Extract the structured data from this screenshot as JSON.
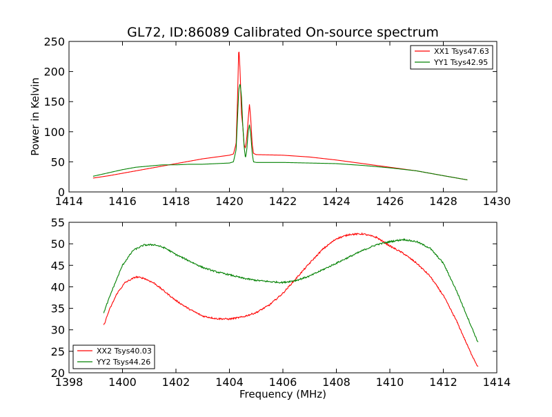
{
  "chart_data": [
    {
      "type": "line",
      "title": "GL72, ID:86089 Calibrated On-source spectrum",
      "xlabel": "",
      "ylabel": "Power in Kelvin",
      "xlim": [
        1414,
        1430
      ],
      "ylim": [
        0,
        250
      ],
      "xticks": [
        "1414",
        "1416",
        "1418",
        "1420",
        "1422",
        "1424",
        "1426",
        "1428",
        "1430"
      ],
      "yticks": [
        "0",
        "50",
        "100",
        "150",
        "200",
        "250"
      ],
      "legend_position": "top-right",
      "series": [
        {
          "name": "XX1 Tsys47.63",
          "color": "#ff0000",
          "points": [
            [
              1414.9,
              23
            ],
            [
              1415.5,
              27
            ],
            [
              1416,
              31
            ],
            [
              1416.5,
              35
            ],
            [
              1417,
              39
            ],
            [
              1417.5,
              43
            ],
            [
              1418,
              47
            ],
            [
              1418.5,
              51
            ],
            [
              1419,
              55
            ],
            [
              1419.5,
              58
            ],
            [
              1420,
              61
            ],
            [
              1420.15,
              63
            ],
            [
              1420.25,
              80
            ],
            [
              1420.3,
              150
            ],
            [
              1420.35,
              241
            ],
            [
              1420.4,
              200
            ],
            [
              1420.45,
              130
            ],
            [
              1420.5,
              110
            ],
            [
              1420.55,
              78
            ],
            [
              1420.6,
              73
            ],
            [
              1420.65,
              90
            ],
            [
              1420.7,
              120
            ],
            [
              1420.75,
              146
            ],
            [
              1420.8,
              120
            ],
            [
              1420.85,
              80
            ],
            [
              1420.9,
              64
            ],
            [
              1421,
              62
            ],
            [
              1422,
              61
            ],
            [
              1423,
              58
            ],
            [
              1424,
              53
            ],
            [
              1425,
              47
            ],
            [
              1426,
              41
            ],
            [
              1427,
              35
            ],
            [
              1428,
              27
            ],
            [
              1428.9,
              20
            ]
          ]
        },
        {
          "name": "YY1 Tsys42.95",
          "color": "#008000",
          "points": [
            [
              1414.9,
              26
            ],
            [
              1415.5,
              32
            ],
            [
              1416,
              37
            ],
            [
              1416.5,
              41
            ],
            [
              1417,
              43
            ],
            [
              1417.5,
              45
            ],
            [
              1418,
              45
            ],
            [
              1418.5,
              46
            ],
            [
              1419,
              46
            ],
            [
              1419.5,
              47
            ],
            [
              1420,
              48
            ],
            [
              1420.15,
              50
            ],
            [
              1420.25,
              70
            ],
            [
              1420.3,
              120
            ],
            [
              1420.35,
              170
            ],
            [
              1420.4,
              180
            ],
            [
              1420.45,
              160
            ],
            [
              1420.5,
              110
            ],
            [
              1420.55,
              75
            ],
            [
              1420.6,
              56
            ],
            [
              1420.65,
              70
            ],
            [
              1420.7,
              100
            ],
            [
              1420.75,
              112
            ],
            [
              1420.8,
              95
            ],
            [
              1420.85,
              65
            ],
            [
              1420.9,
              50
            ],
            [
              1421,
              49
            ],
            [
              1422,
              49
            ],
            [
              1423,
              48
            ],
            [
              1424,
              47
            ],
            [
              1425,
              44
            ],
            [
              1426,
              40
            ],
            [
              1427,
              35
            ],
            [
              1428,
              27
            ],
            [
              1428.9,
              20
            ]
          ]
        }
      ]
    },
    {
      "type": "line",
      "title": "",
      "xlabel": "Frequency (MHz)",
      "ylabel": "",
      "xlim": [
        1398,
        1414
      ],
      "ylim": [
        20,
        55
      ],
      "xticks": [
        "1398",
        "1400",
        "1402",
        "1404",
        "1406",
        "1408",
        "1410",
        "1412",
        "1414"
      ],
      "yticks": [
        "20",
        "25",
        "30",
        "35",
        "40",
        "45",
        "50",
        "55"
      ],
      "legend_position": "bottom-left",
      "series": [
        {
          "name": "XX2 Tsys40.03",
          "color": "#ff0000",
          "points": [
            [
              1399.3,
              31
            ],
            [
              1399.5,
              34.5
            ],
            [
              1399.8,
              38.5
            ],
            [
              1400.1,
              41
            ],
            [
              1400.5,
              42.3
            ],
            [
              1400.8,
              42
            ],
            [
              1401.2,
              40.8
            ],
            [
              1401.6,
              38.8
            ],
            [
              1402,
              36.8
            ],
            [
              1402.5,
              34.8
            ],
            [
              1403,
              33.2
            ],
            [
              1403.5,
              32.6
            ],
            [
              1404,
              32.5
            ],
            [
              1404.5,
              33
            ],
            [
              1405,
              34
            ],
            [
              1405.5,
              35.8
            ],
            [
              1406,
              38.5
            ],
            [
              1406.5,
              42
            ],
            [
              1407,
              45.5
            ],
            [
              1407.5,
              48.8
            ],
            [
              1408,
              51.2
            ],
            [
              1408.5,
              52.2
            ],
            [
              1409,
              52.3
            ],
            [
              1409.5,
              51.5
            ],
            [
              1410,
              49.5
            ],
            [
              1410.5,
              47.8
            ],
            [
              1411,
              45.5
            ],
            [
              1411.5,
              42.5
            ],
            [
              1412,
              38
            ],
            [
              1412.5,
              32
            ],
            [
              1413,
              25
            ],
            [
              1413.3,
              21.3
            ]
          ]
        },
        {
          "name": "YY2 Tsys44.26",
          "color": "#008000",
          "points": [
            [
              1399.3,
              34
            ],
            [
              1399.6,
              39
            ],
            [
              1400,
              45
            ],
            [
              1400.4,
              48.5
            ],
            [
              1400.8,
              49.7
            ],
            [
              1401.2,
              49.8
            ],
            [
              1401.6,
              49
            ],
            [
              1402,
              47.5
            ],
            [
              1402.5,
              46
            ],
            [
              1403,
              44.5
            ],
            [
              1403.5,
              43.5
            ],
            [
              1404,
              42.8
            ],
            [
              1404.5,
              42
            ],
            [
              1405,
              41.5
            ],
            [
              1405.5,
              41.2
            ],
            [
              1406,
              41
            ],
            [
              1406.5,
              41.5
            ],
            [
              1407,
              42.5
            ],
            [
              1407.5,
              44
            ],
            [
              1408,
              45.5
            ],
            [
              1408.5,
              47
            ],
            [
              1409,
              48.5
            ],
            [
              1409.5,
              49.8
            ],
            [
              1410,
              50.5
            ],
            [
              1410.5,
              51
            ],
            [
              1411,
              50.5
            ],
            [
              1411.5,
              49
            ],
            [
              1412,
              45.5
            ],
            [
              1412.5,
              39
            ],
            [
              1413,
              31.5
            ],
            [
              1413.3,
              27
            ]
          ]
        }
      ]
    }
  ]
}
